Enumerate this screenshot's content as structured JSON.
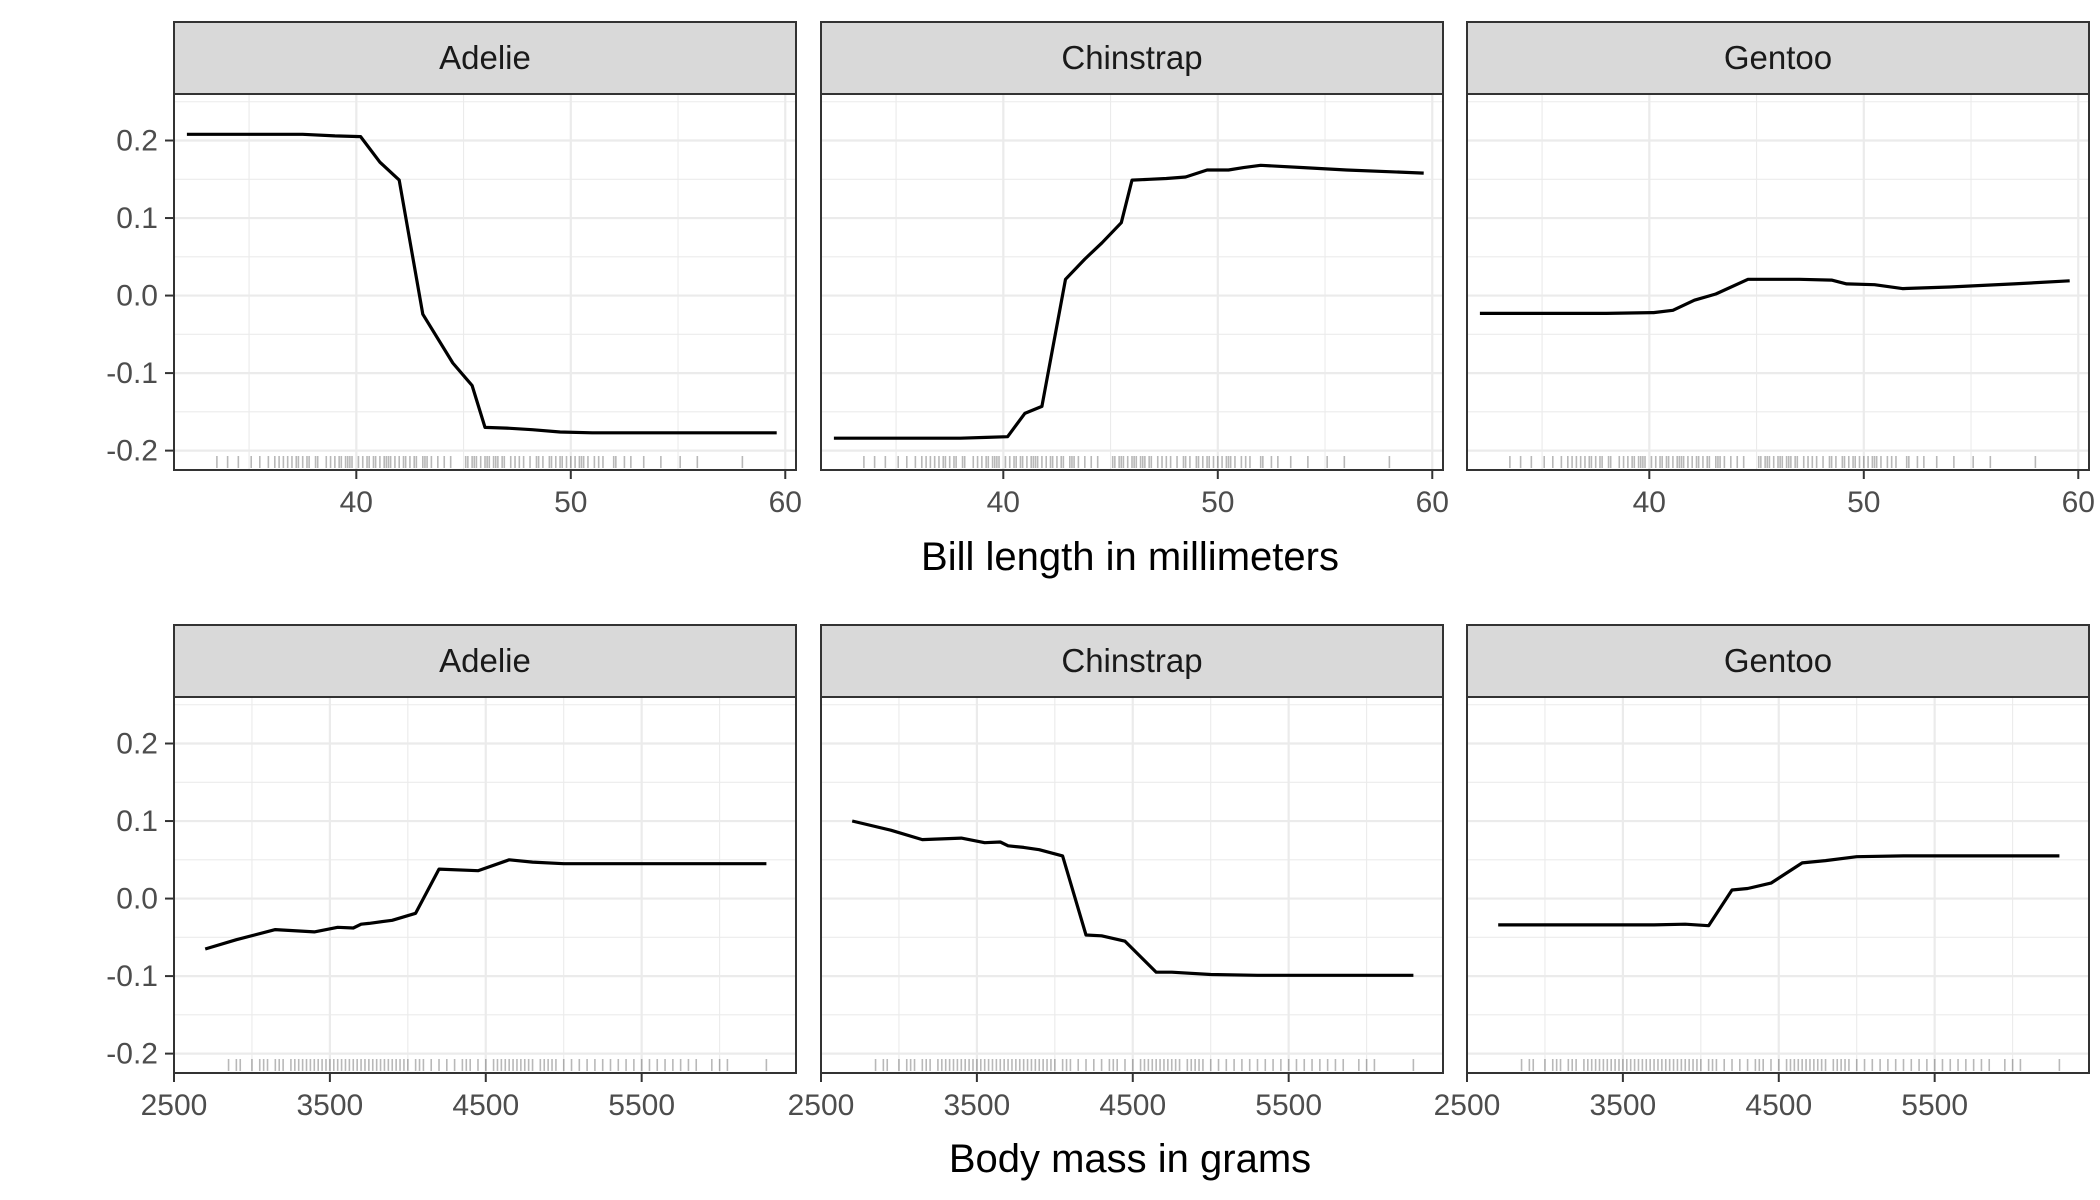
{
  "chart_data": [
    {
      "type": "line",
      "panel": "Adelie",
      "xlabel": "Bill length in millimeters",
      "xlim": [
        31.5,
        60.5
      ],
      "ylim": [
        -0.225,
        0.26
      ],
      "x_ticks": [
        40,
        50,
        60
      ],
      "y_ticks": [
        -0.2,
        -0.1,
        0.0,
        0.1,
        0.2
      ],
      "y_tick_labels": [
        "-0.2",
        "-0.1",
        "0.0",
        "0.1",
        "0.2"
      ],
      "series": [
        {
          "x": [
            32.1,
            35,
            37.5,
            39,
            40.2,
            41.1,
            42,
            43.1,
            44.5,
            45.4,
            46,
            47,
            48.2,
            49.5,
            51,
            53,
            55,
            57,
            59.6
          ],
          "y": [
            0.208,
            0.208,
            0.208,
            0.206,
            0.205,
            0.172,
            0.149,
            -0.024,
            -0.087,
            -0.116,
            -0.17,
            -0.171,
            -0.173,
            -0.176,
            -0.177,
            -0.177,
            -0.177,
            -0.177,
            -0.177
          ]
        }
      ],
      "rug": [
        33.5,
        34,
        34.5,
        35.1,
        35.5,
        35.9,
        36.2,
        36.4,
        36.6,
        36.8,
        37,
        37.2,
        37.3,
        37.5,
        37.7,
        37.8,
        38.1,
        38.2,
        38.6,
        38.8,
        39,
        39.2,
        39.3,
        39.5,
        39.6,
        39.7,
        39.8,
        40.1,
        40.3,
        40.5,
        40.6,
        40.8,
        40.9,
        41.1,
        41.3,
        41.4,
        41.5,
        41.6,
        41.8,
        42,
        42.2,
        42.3,
        42.5,
        42.7,
        42.8,
        43.1,
        43.2,
        43.3,
        43.5,
        43.8,
        44.1,
        44.4,
        45.1,
        45.2,
        45.4,
        45.5,
        45.6,
        45.8,
        46,
        46.1,
        46.2,
        46.4,
        46.5,
        46.6,
        46.8,
        46.9,
        47.2,
        47.4,
        47.6,
        47.8,
        48.1,
        48.4,
        48.5,
        48.7,
        49,
        49.1,
        49.3,
        49.5,
        49.6,
        49.8,
        50,
        50.2,
        50.4,
        50.5,
        50.6,
        50.8,
        51.1,
        51.3,
        51.5,
        52,
        52.1,
        52.5,
        52.8,
        53.4,
        54.2,
        55.1,
        55.9,
        58
      ]
    },
    {
      "type": "line",
      "panel": "Chinstrap",
      "xlabel": "Bill length in millimeters",
      "xlim": [
        31.5,
        60.5
      ],
      "ylim": [
        -0.225,
        0.26
      ],
      "x_ticks": [
        40,
        50,
        60
      ],
      "y_ticks": [
        -0.2,
        -0.1,
        0.0,
        0.1,
        0.2
      ],
      "y_tick_labels": [
        "-0.2",
        "-0.1",
        "0.0",
        "0.1",
        "0.2"
      ],
      "series": [
        {
          "x": [
            32.1,
            35,
            38,
            39.2,
            40.2,
            41,
            41.8,
            42.9,
            43.8,
            44.6,
            45.5,
            46,
            46.8,
            47.6,
            48.5,
            49.5,
            50.5,
            51.2,
            52,
            54,
            56,
            59.6
          ],
          "y": [
            -0.184,
            -0.184,
            -0.184,
            -0.183,
            -0.182,
            -0.152,
            -0.143,
            0.021,
            0.047,
            0.068,
            0.094,
            0.149,
            0.15,
            0.151,
            0.153,
            0.162,
            0.162,
            0.165,
            0.168,
            0.165,
            0.162,
            0.158
          ]
        }
      ],
      "rug": [
        33.5,
        34,
        34.5,
        35.1,
        35.5,
        35.9,
        36.2,
        36.4,
        36.6,
        36.8,
        37,
        37.2,
        37.3,
        37.5,
        37.7,
        37.8,
        38.1,
        38.2,
        38.6,
        38.8,
        39,
        39.2,
        39.3,
        39.5,
        39.6,
        39.7,
        39.8,
        40.1,
        40.3,
        40.5,
        40.6,
        40.8,
        40.9,
        41.1,
        41.3,
        41.4,
        41.5,
        41.6,
        41.8,
        42,
        42.2,
        42.3,
        42.5,
        42.7,
        42.8,
        43.1,
        43.2,
        43.3,
        43.5,
        43.8,
        44.1,
        44.4,
        45.1,
        45.2,
        45.4,
        45.5,
        45.6,
        45.8,
        46,
        46.1,
        46.2,
        46.4,
        46.5,
        46.6,
        46.8,
        46.9,
        47.2,
        47.4,
        47.6,
        47.8,
        48.1,
        48.4,
        48.5,
        48.7,
        49,
        49.1,
        49.3,
        49.5,
        49.6,
        49.8,
        50,
        50.2,
        50.4,
        50.5,
        50.6,
        50.8,
        51.1,
        51.3,
        51.5,
        52,
        52.1,
        52.5,
        52.8,
        53.4,
        54.2,
        55.1,
        55.9,
        58
      ]
    },
    {
      "type": "line",
      "panel": "Gentoo",
      "xlabel": "Bill length in millimeters",
      "xlim": [
        31.5,
        60.5
      ],
      "ylim": [
        -0.225,
        0.26
      ],
      "x_ticks": [
        40,
        50,
        60
      ],
      "y_ticks": [
        -0.2,
        -0.1,
        0.0,
        0.1,
        0.2
      ],
      "y_tick_labels": [
        "-0.2",
        "-0.1",
        "0.0",
        "0.1",
        "0.2"
      ],
      "series": [
        {
          "x": [
            32.1,
            35,
            38,
            40.2,
            41.1,
            42.1,
            43.1,
            44.6,
            46,
            47,
            48.5,
            49.2,
            50.5,
            51.8,
            54,
            57,
            59.6
          ],
          "y": [
            -0.023,
            -0.023,
            -0.023,
            -0.022,
            -0.019,
            -0.006,
            0.002,
            0.021,
            0.021,
            0.021,
            0.02,
            0.015,
            0.014,
            0.009,
            0.011,
            0.015,
            0.019
          ]
        }
      ],
      "rug": [
        33.5,
        34,
        34.5,
        35.1,
        35.5,
        35.9,
        36.2,
        36.4,
        36.6,
        36.8,
        37,
        37.2,
        37.3,
        37.5,
        37.7,
        37.8,
        38.1,
        38.2,
        38.6,
        38.8,
        39,
        39.2,
        39.3,
        39.5,
        39.6,
        39.7,
        39.8,
        40.1,
        40.3,
        40.5,
        40.6,
        40.8,
        40.9,
        41.1,
        41.3,
        41.4,
        41.5,
        41.6,
        41.8,
        42,
        42.2,
        42.3,
        42.5,
        42.7,
        42.8,
        43.1,
        43.2,
        43.3,
        43.5,
        43.8,
        44.1,
        44.4,
        45.1,
        45.2,
        45.4,
        45.5,
        45.6,
        45.8,
        46,
        46.1,
        46.2,
        46.4,
        46.5,
        46.6,
        46.8,
        46.9,
        47.2,
        47.4,
        47.6,
        47.8,
        48.1,
        48.4,
        48.5,
        48.7,
        49,
        49.1,
        49.3,
        49.5,
        49.6,
        49.8,
        50,
        50.2,
        50.4,
        50.5,
        50.6,
        50.8,
        51.1,
        51.3,
        51.5,
        52,
        52.1,
        52.5,
        52.8,
        53.4,
        54.2,
        55.1,
        55.9,
        58
      ]
    },
    {
      "type": "line",
      "panel": "Adelie",
      "xlabel": "Body mass in grams",
      "xlim": [
        2500,
        6490
      ],
      "ylim": [
        -0.225,
        0.26
      ],
      "x_ticks": [
        2500,
        3500,
        4500,
        5500
      ],
      "y_ticks": [
        -0.2,
        -0.1,
        0.0,
        0.1,
        0.2
      ],
      "y_tick_labels": [
        "-0.2",
        "-0.1",
        "0.0",
        "0.1",
        "0.2"
      ],
      "series": [
        {
          "x": [
            2700,
            2900,
            3150,
            3400,
            3550,
            3650,
            3700,
            3750,
            3900,
            4050,
            4200,
            4450,
            4650,
            4800,
            5000,
            5400,
            5800,
            6300
          ],
          "y": [
            -0.065,
            -0.053,
            -0.04,
            -0.043,
            -0.037,
            -0.038,
            -0.033,
            -0.032,
            -0.028,
            -0.019,
            0.038,
            0.036,
            0.05,
            0.047,
            0.045,
            0.045,
            0.045,
            0.045
          ]
        }
      ],
      "rug": [
        2850,
        2900,
        2925,
        3000,
        3050,
        3075,
        3100,
        3150,
        3175,
        3200,
        3250,
        3275,
        3300,
        3325,
        3350,
        3375,
        3400,
        3425,
        3450,
        3475,
        3500,
        3525,
        3550,
        3575,
        3600,
        3625,
        3650,
        3675,
        3700,
        3725,
        3750,
        3775,
        3800,
        3825,
        3850,
        3875,
        3900,
        3925,
        3950,
        3975,
        4000,
        4050,
        4075,
        4100,
        4150,
        4200,
        4250,
        4300,
        4350,
        4375,
        4400,
        4450,
        4500,
        4550,
        4575,
        4600,
        4625,
        4650,
        4675,
        4700,
        4725,
        4750,
        4775,
        4800,
        4850,
        4875,
        4900,
        4925,
        4950,
        5000,
        5050,
        5100,
        5150,
        5200,
        5250,
        5300,
        5350,
        5400,
        5450,
        5500,
        5550,
        5600,
        5650,
        5700,
        5750,
        5800,
        5850,
        5950,
        6000,
        6050,
        6300
      ]
    },
    {
      "type": "line",
      "panel": "Chinstrap",
      "xlabel": "Body mass in grams",
      "xlim": [
        2500,
        6490
      ],
      "ylim": [
        -0.225,
        0.26
      ],
      "x_ticks": [
        2500,
        3500,
        4500,
        5500
      ],
      "y_ticks": [
        -0.2,
        -0.1,
        0.0,
        0.1,
        0.2
      ],
      "y_tick_labels": [
        "-0.2",
        "-0.1",
        "0.0",
        "0.1",
        "0.2"
      ],
      "series": [
        {
          "x": [
            2700,
            2950,
            3150,
            3400,
            3550,
            3650,
            3700,
            3800,
            3900,
            4050,
            4200,
            4300,
            4450,
            4650,
            4750,
            5000,
            5300,
            5800,
            6300
          ],
          "y": [
            0.1,
            0.088,
            0.076,
            0.078,
            0.072,
            0.073,
            0.068,
            0.066,
            0.063,
            0.055,
            -0.047,
            -0.048,
            -0.055,
            -0.095,
            -0.095,
            -0.098,
            -0.099,
            -0.099,
            -0.099
          ]
        }
      ],
      "rug": [
        2850,
        2900,
        2925,
        3000,
        3050,
        3075,
        3100,
        3150,
        3175,
        3200,
        3250,
        3275,
        3300,
        3325,
        3350,
        3375,
        3400,
        3425,
        3450,
        3475,
        3500,
        3525,
        3550,
        3575,
        3600,
        3625,
        3650,
        3675,
        3700,
        3725,
        3750,
        3775,
        3800,
        3825,
        3850,
        3875,
        3900,
        3925,
        3950,
        3975,
        4000,
        4050,
        4075,
        4100,
        4150,
        4200,
        4250,
        4300,
        4350,
        4375,
        4400,
        4450,
        4500,
        4550,
        4575,
        4600,
        4625,
        4650,
        4675,
        4700,
        4725,
        4750,
        4775,
        4800,
        4850,
        4875,
        4900,
        4925,
        4950,
        5000,
        5050,
        5100,
        5150,
        5200,
        5250,
        5300,
        5350,
        5400,
        5450,
        5500,
        5550,
        5600,
        5650,
        5700,
        5750,
        5800,
        5850,
        5950,
        6000,
        6050,
        6300
      ]
    },
    {
      "type": "line",
      "panel": "Gentoo",
      "xlabel": "Body mass in grams",
      "xlim": [
        2500,
        6490
      ],
      "ylim": [
        -0.225,
        0.26
      ],
      "x_ticks": [
        2500,
        3500,
        4500,
        5500
      ],
      "y_ticks": [
        -0.2,
        -0.1,
        0.0,
        0.1,
        0.2
      ],
      "y_tick_labels": [
        "-0.2",
        "-0.1",
        "0.0",
        "0.1",
        "0.2"
      ],
      "series": [
        {
          "x": [
            2700,
            3000,
            3400,
            3700,
            3900,
            4050,
            4200,
            4300,
            4450,
            4650,
            4800,
            5000,
            5300,
            5700,
            6300
          ],
          "y": [
            -0.034,
            -0.034,
            -0.034,
            -0.034,
            -0.033,
            -0.035,
            0.011,
            0.013,
            0.02,
            0.046,
            0.049,
            0.054,
            0.055,
            0.055,
            0.055
          ]
        }
      ],
      "rug": [
        2850,
        2900,
        2925,
        3000,
        3050,
        3075,
        3100,
        3150,
        3175,
        3200,
        3250,
        3275,
        3300,
        3325,
        3350,
        3375,
        3400,
        3425,
        3450,
        3475,
        3500,
        3525,
        3550,
        3575,
        3600,
        3625,
        3650,
        3675,
        3700,
        3725,
        3750,
        3775,
        3800,
        3825,
        3850,
        3875,
        3900,
        3925,
        3950,
        3975,
        4000,
        4050,
        4075,
        4100,
        4150,
        4200,
        4250,
        4300,
        4350,
        4375,
        4400,
        4450,
        4500,
        4550,
        4575,
        4600,
        4625,
        4650,
        4675,
        4700,
        4725,
        4750,
        4775,
        4800,
        4850,
        4875,
        4900,
        4925,
        4950,
        5000,
        5050,
        5100,
        5150,
        5200,
        5250,
        5300,
        5350,
        5400,
        5450,
        5500,
        5550,
        5600,
        5650,
        5700,
        5750,
        5800,
        5850,
        5950,
        6000,
        6050,
        6300
      ]
    }
  ],
  "axis_titles": {
    "top": "Bill length in millimeters",
    "bottom": "Body mass in grams"
  },
  "grid": true,
  "legend": "none"
}
